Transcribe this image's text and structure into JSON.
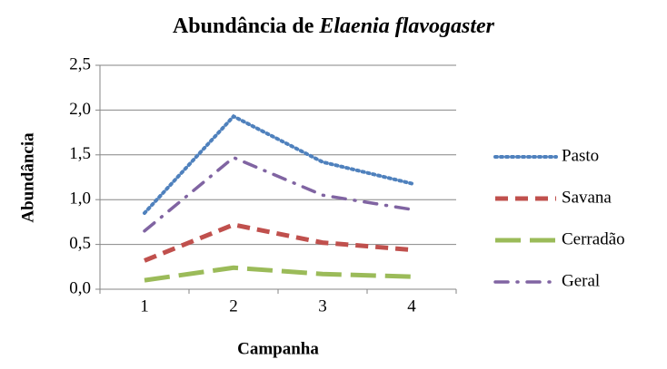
{
  "chart_data": {
    "type": "line",
    "title": [
      "Abundância de",
      "Elaenia flavogaster"
    ],
    "x_label": "Campanha",
    "y_label": "Abundância",
    "categories": [
      "1",
      "2",
      "3",
      "4"
    ],
    "series": [
      {
        "name": "Pasto",
        "color": "#4f81bd",
        "dash": "dotted",
        "values": [
          0.85,
          1.93,
          1.42,
          1.18
        ]
      },
      {
        "name": "Savana",
        "color": "#c0504d",
        "dash": "dashed",
        "values": [
          0.32,
          0.72,
          0.52,
          0.44
        ]
      },
      {
        "name": "Cerradão",
        "color": "#9bbb59",
        "dash": "long-dash",
        "values": [
          0.1,
          0.24,
          0.17,
          0.14
        ]
      },
      {
        "name": "Geral",
        "color": "#8064a2",
        "dash": "dash-dot",
        "values": [
          0.65,
          1.47,
          1.05,
          0.89
        ]
      }
    ],
    "ylim": [
      0,
      2.5
    ],
    "yticks": [
      {
        "value": 0,
        "label": "0,0"
      },
      {
        "value": 0.5,
        "label": "0,5"
      },
      {
        "value": 1,
        "label": "1,0"
      },
      {
        "value": 1.5,
        "label": "1,5"
      },
      {
        "value": 2,
        "label": "2,0"
      },
      {
        "value": 2.5,
        "label": "2,5"
      }
    ],
    "grid": true,
    "legend": "right"
  }
}
